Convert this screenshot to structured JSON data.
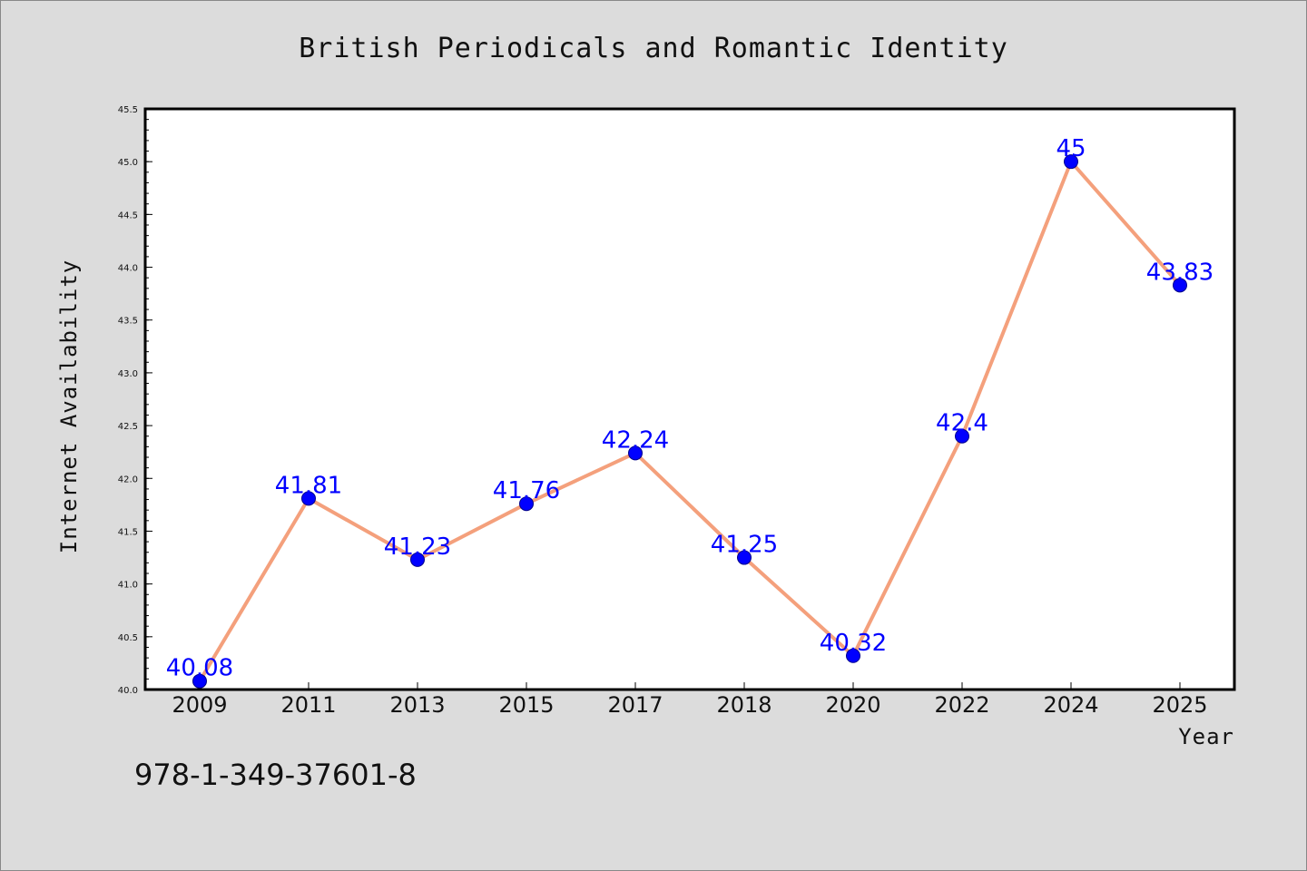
{
  "chart_data": {
    "type": "line",
    "title": "British Periodicals and Romantic Identity",
    "xlabel": "Year",
    "ylabel": "Internet Availability",
    "categories": [
      "2009",
      "2011",
      "2013",
      "2015",
      "2017",
      "2018",
      "2020",
      "2022",
      "2024",
      "2025"
    ],
    "series": [
      {
        "values": [
          40.08,
          41.81,
          41.23,
          41.76,
          42.24,
          41.25,
          40.32,
          42.4,
          45,
          43.83
        ],
        "data_labels": [
          "40.08",
          "41.81",
          "41.23",
          "41.76",
          "42.24",
          "41.25",
          "40.32",
          "42.4",
          "45",
          "43.83"
        ]
      }
    ],
    "ylim": [
      40.0,
      45.5
    ],
    "yticks": [
      "40.0",
      "40.5",
      "41.0",
      "41.5",
      "42.0",
      "42.5",
      "43.0",
      "43.5",
      "44.0",
      "44.5",
      "45.0",
      "45.5"
    ],
    "grid": false,
    "line_color": "#f4a07c",
    "marker_color": "#0000ff",
    "label_color": "#0000ff"
  },
  "footer": {
    "isbn": "978-1-349-37601-8"
  }
}
